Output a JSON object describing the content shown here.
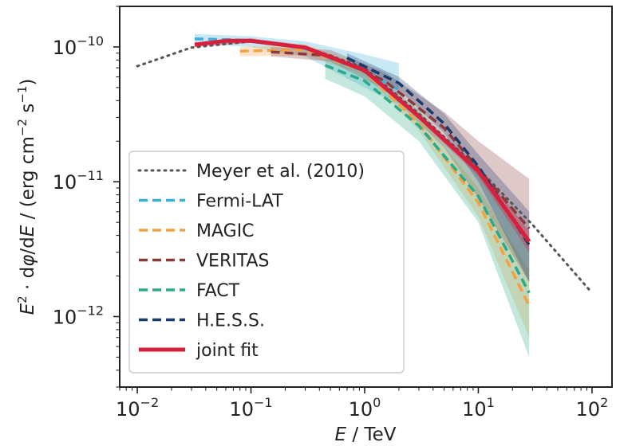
{
  "chart_data": {
    "type": "line",
    "xscale": "log",
    "yscale": "log",
    "xlim": [
      0.007,
      150
    ],
    "ylim": [
      3e-13,
      2e-10
    ],
    "xlabel_parts": [
      "E",
      " / TeV"
    ],
    "ylabel_parts": [
      "E",
      "2",
      " · d",
      "φ",
      "/d",
      "E",
      " / (erg cm",
      "−2",
      " s",
      "−1",
      ")"
    ],
    "xticks": [
      {
        "value": 0.01,
        "base": "10",
        "exp": "−2"
      },
      {
        "value": 0.1,
        "base": "10",
        "exp": "−1"
      },
      {
        "value": 1,
        "base": "10",
        "exp": "0"
      },
      {
        "value": 10,
        "base": "10",
        "exp": "1"
      },
      {
        "value": 100,
        "base": "10",
        "exp": "2"
      }
    ],
    "yticks": [
      {
        "value": 1e-10,
        "base": "10",
        "exp": "−10"
      },
      {
        "value": 1e-11,
        "base": "10",
        "exp": "−11"
      },
      {
        "value": 1e-12,
        "base": "10",
        "exp": "−12"
      }
    ],
    "series": [
      {
        "name": "Meyer et al. (2010)",
        "color": "#555555",
        "dash": "dotted",
        "width": 3,
        "points": [
          [
            0.01,
            7.2e-11
          ],
          [
            0.03,
            9.9e-11
          ],
          [
            0.1,
            1.1e-10
          ],
          [
            0.3,
            1e-10
          ],
          [
            1,
            7e-11
          ],
          [
            3,
            3.2e-11
          ],
          [
            10,
            1.25e-11
          ],
          [
            30,
            4.8e-12
          ],
          [
            100,
            1.5e-12
          ]
        ]
      },
      {
        "name": "Fermi-LAT",
        "color": "#3bb0d6",
        "dash": "dashed",
        "width": 3.5,
        "band": {
          "lower": [
            [
              0.032,
              1.05e-10
            ],
            [
              0.1,
              1e-10
            ],
            [
              0.3,
              8.5e-11
            ],
            [
              1,
              5e-11
            ],
            [
              2,
              3.7e-11
            ]
          ],
          "upper": [
            [
              0.032,
              1.25e-10
            ],
            [
              0.1,
              1.2e-10
            ],
            [
              0.3,
              1.1e-10
            ],
            [
              1,
              8.8e-11
            ],
            [
              2,
              7.6e-11
            ]
          ]
        },
        "points": [
          [
            0.032,
            1.15e-10
          ],
          [
            0.1,
            1.12e-10
          ],
          [
            0.3,
            9.7e-11
          ],
          [
            1,
            6.6e-11
          ],
          [
            2,
            4.8e-11
          ]
        ]
      },
      {
        "name": "MAGIC",
        "color": "#f5a142",
        "dash": "dashed",
        "width": 3.5,
        "band": {
          "lower": [
            [
              0.08,
              8.5e-11
            ],
            [
              0.3,
              8.7e-11
            ],
            [
              1,
              6.2e-11
            ],
            [
              3,
              2.4e-11
            ],
            [
              10,
              5.5e-12
            ],
            [
              28,
              7e-13
            ]
          ],
          "upper": [
            [
              0.08,
              1e-10
            ],
            [
              0.3,
              1.05e-10
            ],
            [
              1,
              7.2e-11
            ],
            [
              3,
              3.1e-11
            ],
            [
              10,
              9e-12
            ],
            [
              28,
              2.2e-12
            ]
          ]
        },
        "points": [
          [
            0.08,
            9.3e-11
          ],
          [
            0.3,
            9.6e-11
          ],
          [
            1,
            6.6e-11
          ],
          [
            3,
            2.7e-11
          ],
          [
            10,
            7e-12
          ],
          [
            28,
            1.2e-12
          ]
        ]
      },
      {
        "name": "VERITAS",
        "color": "#8b3a3a",
        "dash": "dashed",
        "width": 3.5,
        "band": {
          "lower": [
            [
              0.15,
              8.5e-11
            ],
            [
              0.5,
              7.8e-11
            ],
            [
              1.5,
              4.8e-11
            ],
            [
              5,
              1.8e-11
            ],
            [
              10,
              7.5e-12
            ],
            [
              28,
              1.8e-12
            ]
          ],
          "upper": [
            [
              0.15,
              1e-10
            ],
            [
              0.5,
              9.5e-11
            ],
            [
              1.5,
              6.5e-11
            ],
            [
              5,
              3.3e-11
            ],
            [
              10,
              2e-11
            ],
            [
              28,
              1.05e-11
            ]
          ]
        },
        "points": [
          [
            0.15,
            9.2e-11
          ],
          [
            0.5,
            8.6e-11
          ],
          [
            1.5,
            5.6e-11
          ],
          [
            5,
            2.5e-11
          ],
          [
            10,
            1.25e-11
          ],
          [
            28,
            4.5e-12
          ]
        ]
      },
      {
        "name": "FACT",
        "color": "#2aab88",
        "dash": "dashed",
        "width": 3.5,
        "band": {
          "lower": [
            [
              0.45,
              5.8e-11
            ],
            [
              1,
              4.3e-11
            ],
            [
              3,
              2e-11
            ],
            [
              10,
              5e-12
            ],
            [
              28,
              5e-13
            ]
          ],
          "upper": [
            [
              0.45,
              9e-11
            ],
            [
              1,
              7e-11
            ],
            [
              3,
              3.4e-11
            ],
            [
              10,
              1.2e-11
            ],
            [
              28,
              3.5e-12
            ]
          ]
        },
        "points": [
          [
            0.45,
            7.3e-11
          ],
          [
            1,
            5.6e-11
          ],
          [
            3,
            2.6e-11
          ],
          [
            10,
            7.8e-12
          ],
          [
            28,
            1.5e-12
          ]
        ]
      },
      {
        "name": "H.E.S.S.",
        "color": "#1a3a6b",
        "dash": "dashed",
        "width": 3.5,
        "band": {
          "lower": [
            [
              0.7,
              7.5e-11
            ],
            [
              2,
              4.8e-11
            ],
            [
              5,
              2.3e-11
            ],
            [
              10,
              1e-11
            ],
            [
              28,
              1.8e-12
            ]
          ],
          "upper": [
            [
              0.7,
              9e-11
            ],
            [
              2,
              6e-11
            ],
            [
              5,
              3.2e-11
            ],
            [
              10,
              1.6e-11
            ],
            [
              28,
              6e-12
            ]
          ]
        },
        "points": [
          [
            0.7,
            8.3e-11
          ],
          [
            2,
            5.4e-11
          ],
          [
            5,
            2.7e-11
          ],
          [
            10,
            1.3e-11
          ],
          [
            28,
            3.4e-12
          ]
        ]
      },
      {
        "name": "joint fit",
        "color": "#d8203e",
        "dash": "solid",
        "width": 5,
        "band": {
          "lower": [
            [
              0.032,
              1e-10
            ],
            [
              0.1,
              1.07e-10
            ],
            [
              0.3,
              9.6e-11
            ],
            [
              1,
              6.5e-11
            ],
            [
              3,
              2.9e-11
            ],
            [
              10,
              1.1e-11
            ],
            [
              28,
              3e-12
            ]
          ],
          "upper": [
            [
              0.032,
              1.08e-10
            ],
            [
              0.1,
              1.16e-10
            ],
            [
              0.3,
              1.03e-10
            ],
            [
              1,
              7e-11
            ],
            [
              3,
              3.2e-11
            ],
            [
              10,
              1.3e-11
            ],
            [
              28,
              4.3e-12
            ]
          ]
        },
        "points": [
          [
            0.032,
            1.04e-10
          ],
          [
            0.06,
            1.11e-10
          ],
          [
            0.1,
            1.11e-10
          ],
          [
            0.3,
            9.9e-11
          ],
          [
            1,
            6.7e-11
          ],
          [
            3,
            3.05e-11
          ],
          [
            10,
            1.2e-11
          ],
          [
            28,
            3.6e-12
          ]
        ]
      }
    ],
    "legend": {
      "position": "lower-left"
    },
    "grid": false
  }
}
